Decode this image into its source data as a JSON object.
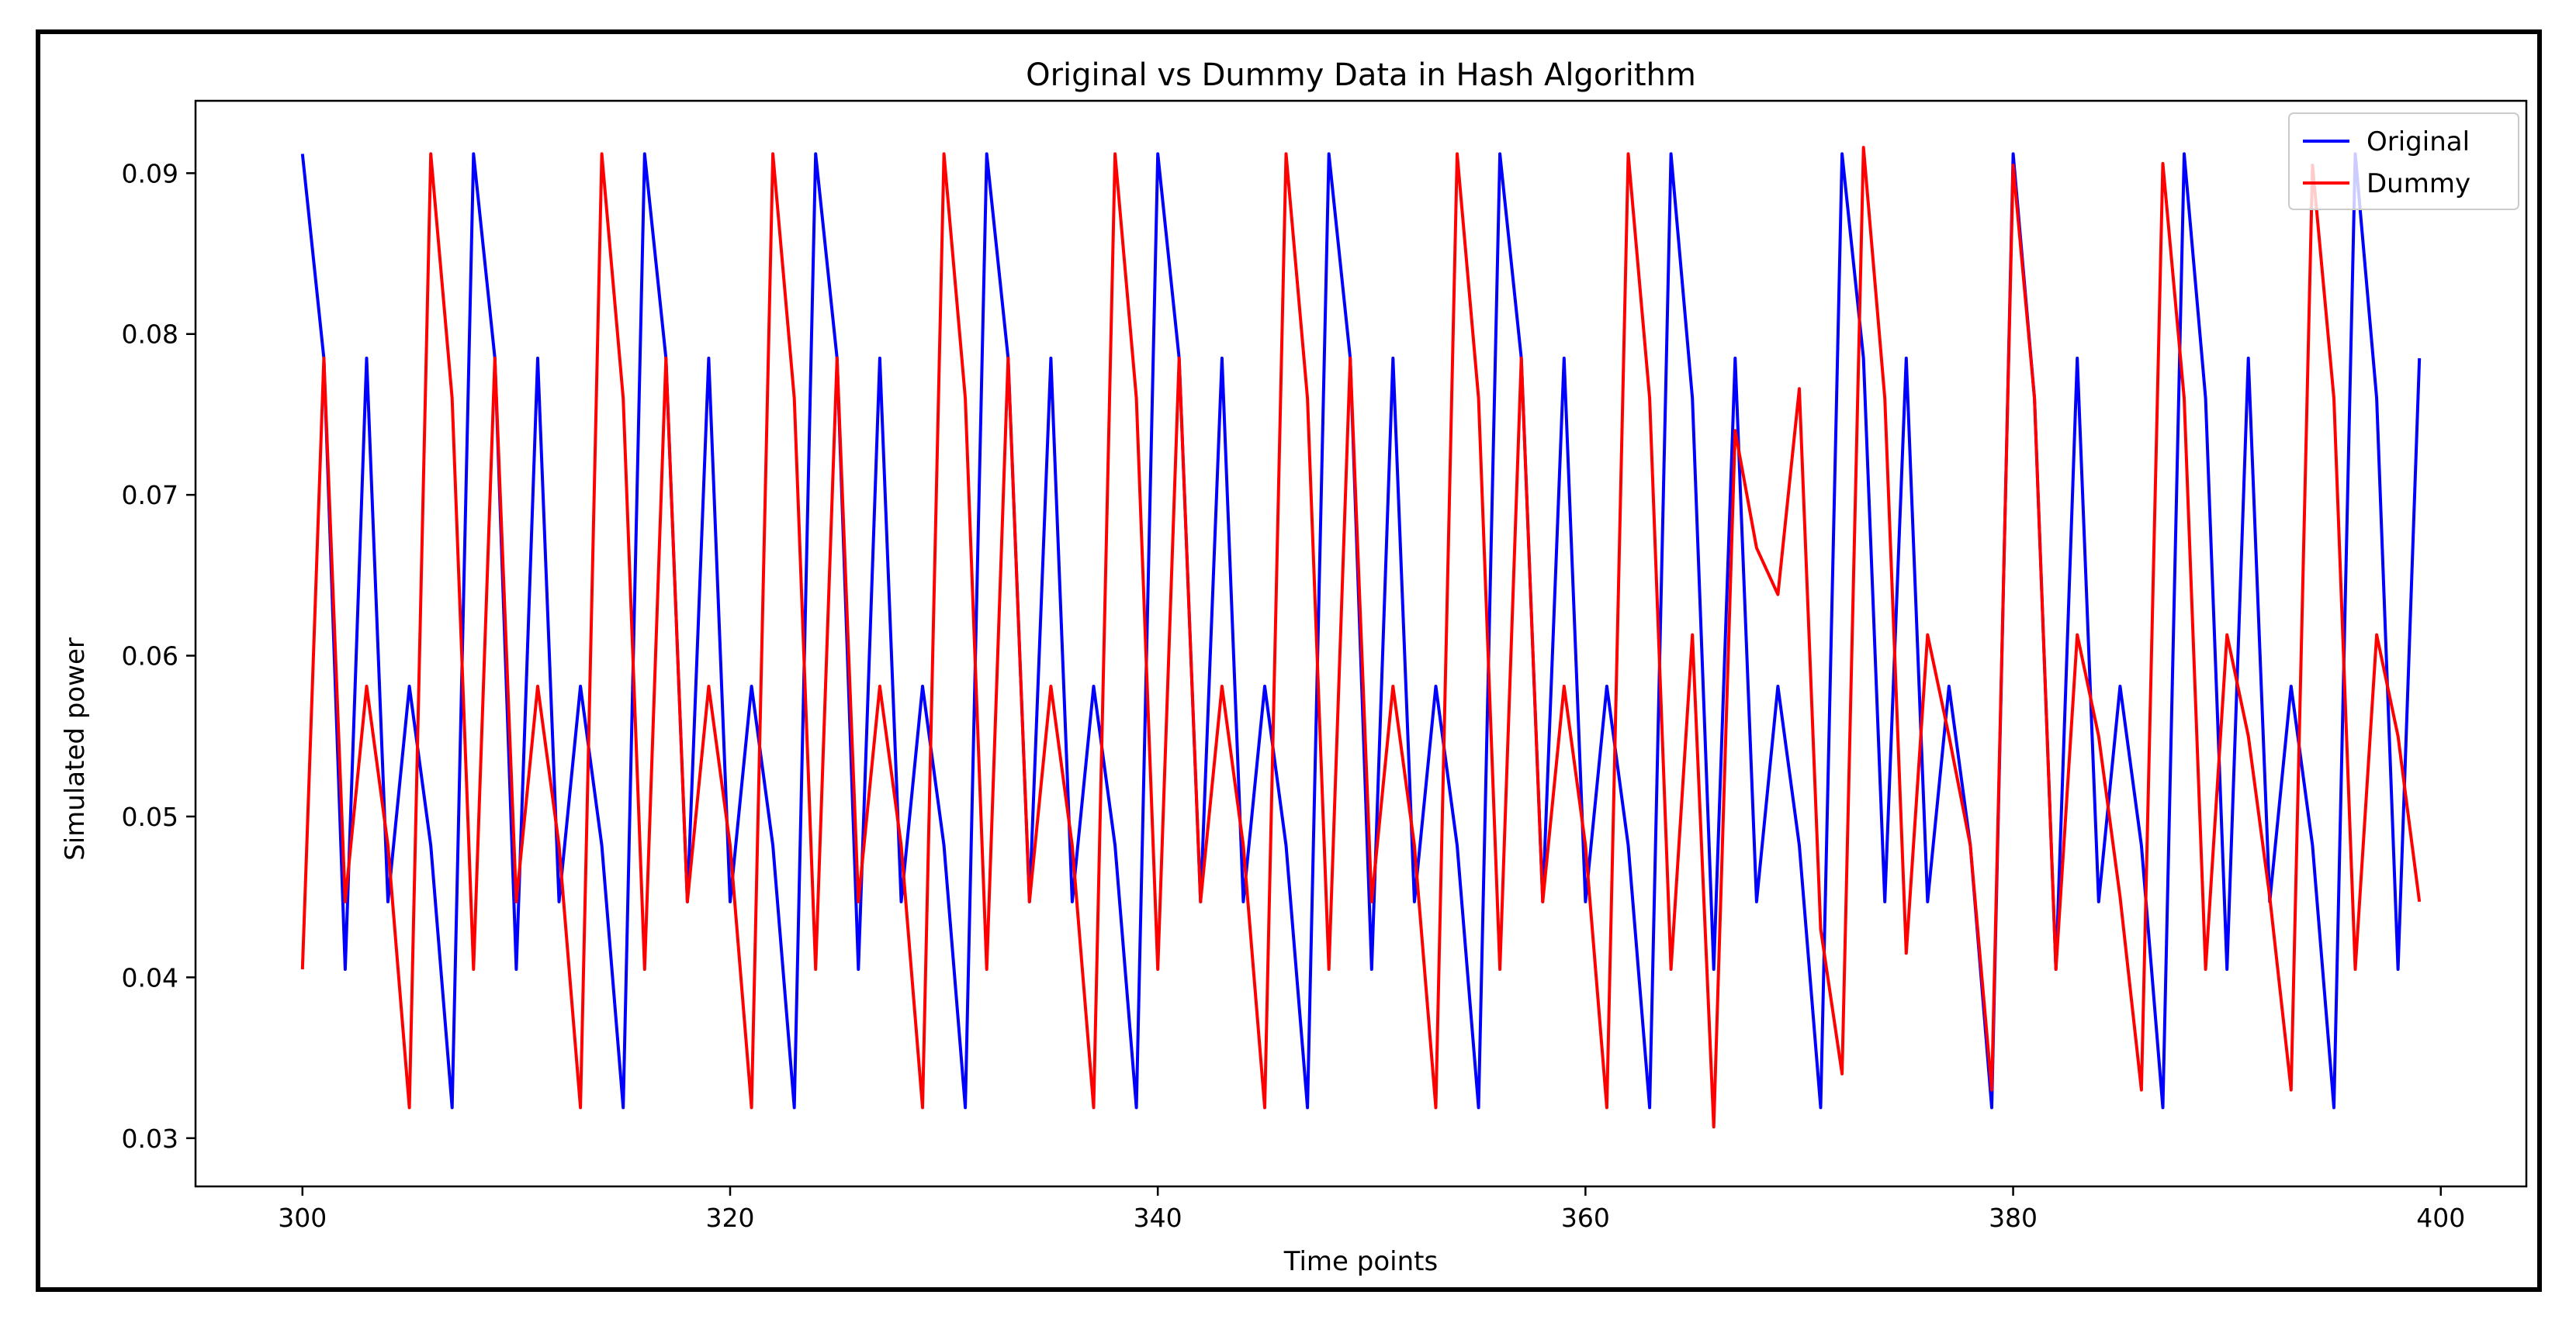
{
  "chart_data": {
    "type": "line",
    "title": "Original vs Dummy Data in Hash Algorithm",
    "xlabel": "Time points",
    "ylabel": "Simulated power",
    "xlim": [
      295,
      404
    ],
    "ylim": [
      0.027,
      0.0945
    ],
    "xticks": [
      300,
      320,
      340,
      360,
      380,
      400
    ],
    "xtick_labels": [
      "300",
      "320",
      "340",
      "360",
      "380",
      "400"
    ],
    "yticks": [
      0.03,
      0.04,
      0.05,
      0.06,
      0.07,
      0.08,
      0.09
    ],
    "ytick_labels": [
      "0.03",
      "0.04",
      "0.05",
      "0.06",
      "0.07",
      "0.08",
      "0.09"
    ],
    "grid": false,
    "legend_position": "top-right",
    "x": [
      300,
      301,
      302,
      303,
      304,
      305,
      306,
      307,
      308,
      309,
      310,
      311,
      312,
      313,
      314,
      315,
      316,
      317,
      318,
      319,
      320,
      321,
      322,
      323,
      324,
      325,
      326,
      327,
      328,
      329,
      330,
      331,
      332,
      333,
      334,
      335,
      336,
      337,
      338,
      339,
      340,
      341,
      342,
      343,
      344,
      345,
      346,
      347,
      348,
      349,
      350,
      351,
      352,
      353,
      354,
      355,
      356,
      357,
      358,
      359,
      360,
      361,
      362,
      363,
      364,
      365,
      366,
      367,
      368,
      369,
      370,
      371,
      372,
      373,
      374,
      375,
      376,
      377,
      378,
      379,
      380,
      381,
      382,
      383,
      384,
      385,
      386,
      387,
      388,
      389,
      390,
      391,
      392,
      393,
      394,
      395,
      396,
      397,
      398,
      399
    ],
    "series": [
      {
        "name": "Original",
        "color": "#0000ff",
        "values": [
          0.0912,
          0.0785,
          0.0405,
          0.0785,
          0.0447,
          0.0581,
          0.0482,
          0.0319,
          0.0912,
          0.0785,
          0.0405,
          0.0785,
          0.0447,
          0.0581,
          0.0482,
          0.0319,
          0.0912,
          0.0785,
          0.0447,
          0.0785,
          0.0447,
          0.0581,
          0.0482,
          0.0319,
          0.0912,
          0.0785,
          0.0405,
          0.0785,
          0.0447,
          0.0581,
          0.0482,
          0.0319,
          0.0912,
          0.0785,
          0.0447,
          0.0785,
          0.0447,
          0.0581,
          0.0482,
          0.0319,
          0.0912,
          0.0785,
          0.0447,
          0.0785,
          0.0447,
          0.0581,
          0.0482,
          0.0319,
          0.0912,
          0.0785,
          0.0405,
          0.0785,
          0.0447,
          0.0581,
          0.0482,
          0.0319,
          0.0912,
          0.0785,
          0.0447,
          0.0785,
          0.0447,
          0.0581,
          0.0482,
          0.0319,
          0.0912,
          0.076,
          0.0405,
          0.0785,
          0.0447,
          0.0581,
          0.0482,
          0.0319,
          0.0912,
          0.0785,
          0.0447,
          0.0785,
          0.0447,
          0.0581,
          0.0482,
          0.0319,
          0.0912,
          0.076,
          0.0405,
          0.0785,
          0.0447,
          0.0581,
          0.0482,
          0.0319,
          0.0912,
          0.076,
          0.0405,
          0.0785,
          0.0447,
          0.0581,
          0.0482,
          0.0319,
          0.0912,
          0.076,
          0.0405,
          0.0785
        ]
      },
      {
        "name": "Dummy",
        "color": "#ff0000",
        "values": [
          0.0405,
          0.0785,
          0.0447,
          0.0581,
          0.0482,
          0.0319,
          0.0912,
          0.076,
          0.0405,
          0.0785,
          0.0447,
          0.0581,
          0.0482,
          0.0319,
          0.0912,
          0.076,
          0.0405,
          0.0785,
          0.0447,
          0.0581,
          0.0482,
          0.0319,
          0.0912,
          0.076,
          0.0405,
          0.0785,
          0.0447,
          0.0581,
          0.0482,
          0.0319,
          0.0912,
          0.076,
          0.0405,
          0.0785,
          0.0447,
          0.0581,
          0.0482,
          0.0319,
          0.0912,
          0.076,
          0.0405,
          0.0785,
          0.0447,
          0.0581,
          0.0482,
          0.0319,
          0.0912,
          0.076,
          0.0405,
          0.0785,
          0.0447,
          0.0581,
          0.0482,
          0.0319,
          0.0912,
          0.076,
          0.0405,
          0.0785,
          0.0447,
          0.0581,
          0.0482,
          0.0319,
          0.0912,
          0.076,
          0.0405,
          0.0613,
          0.0307,
          0.074,
          0.0667,
          0.0638,
          0.0766,
          0.043,
          0.034,
          0.0916,
          0.076,
          0.0415,
          0.0613,
          0.055,
          0.0482,
          0.033,
          0.0905,
          0.076,
          0.0405,
          0.0613,
          0.055,
          0.045,
          0.033,
          0.0906,
          0.076,
          0.0405,
          0.0613,
          0.055,
          0.045,
          0.033,
          0.0905,
          0.076,
          0.0405,
          0.0613,
          0.055,
          0.0447
        ]
      }
    ]
  }
}
